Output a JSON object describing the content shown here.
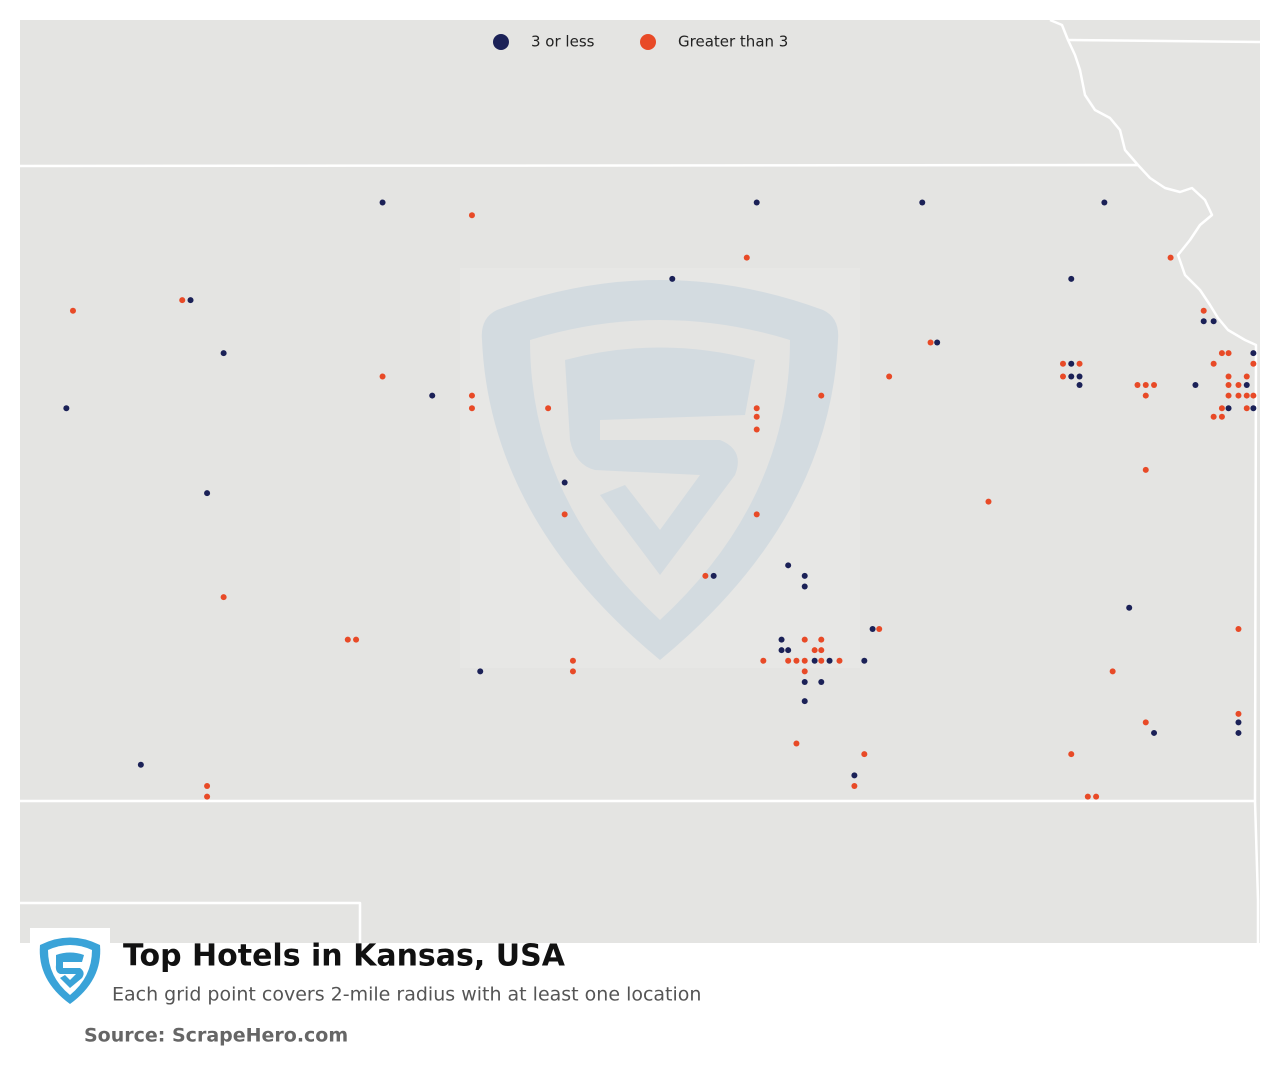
{
  "chart_data": {
    "type": "map",
    "title": "Top Hotels in Kansas, USA",
    "subtitle": "Each grid point covers 2-mile radius with at least one location",
    "source": "Source: ScrapeHero.com",
    "xlim": [
      -102.06,
      -94.57
    ],
    "ylim": [
      36.33,
      40.68
    ],
    "series": [
      {
        "name": "3 or less",
        "color": "#1b2157",
        "points": [
          [
            -99.87,
            39.82
          ],
          [
            -97.61,
            39.82
          ],
          [
            -96.61,
            39.82
          ],
          [
            -95.51,
            39.82
          ],
          [
            -101.03,
            39.36
          ],
          [
            -98.12,
            39.46
          ],
          [
            -100.83,
            39.11
          ],
          [
            -95.71,
            39.46
          ],
          [
            -96.52,
            39.16
          ],
          [
            -101.78,
            38.85
          ],
          [
            -99.57,
            38.91
          ],
          [
            -100.93,
            38.45
          ],
          [
            -98.77,
            38.5
          ],
          [
            -97.87,
            38.06
          ],
          [
            -97.42,
            38.11
          ],
          [
            -97.32,
            38.06
          ],
          [
            -97.32,
            38.01
          ],
          [
            -99.28,
            37.61
          ],
          [
            -101.33,
            37.17
          ],
          [
            -97.46,
            37.76
          ],
          [
            -97.46,
            37.71
          ],
          [
            -97.42,
            37.71
          ],
          [
            -97.26,
            37.66
          ],
          [
            -97.17,
            37.66
          ],
          [
            -96.96,
            37.66
          ],
          [
            -97.32,
            37.56
          ],
          [
            -97.22,
            37.56
          ],
          [
            -97.32,
            37.47
          ],
          [
            -96.91,
            37.81
          ],
          [
            -97.02,
            37.12
          ],
          [
            -95.36,
            37.91
          ],
          [
            -95.21,
            37.32
          ],
          [
            -94.7,
            37.37
          ],
          [
            -94.7,
            37.32
          ],
          [
            -95.71,
            39.06
          ],
          [
            -95.71,
            39.0
          ],
          [
            -95.66,
            39.0
          ],
          [
            -95.66,
            38.96
          ],
          [
            -94.91,
            39.26
          ],
          [
            -94.85,
            39.26
          ],
          [
            -94.61,
            39.11
          ],
          [
            -94.96,
            38.96
          ],
          [
            -94.65,
            38.96
          ],
          [
            -94.76,
            38.85
          ],
          [
            -94.61,
            38.85
          ]
        ]
      },
      {
        "name": "Greater than 3",
        "color": "#e84a27",
        "points": [
          [
            -99.33,
            39.76
          ],
          [
            -97.67,
            39.56
          ],
          [
            -101.74,
            39.31
          ],
          [
            -101.08,
            39.36
          ],
          [
            -99.87,
            39.0
          ],
          [
            -99.33,
            38.91
          ],
          [
            -99.33,
            38.85
          ],
          [
            -98.87,
            38.85
          ],
          [
            -97.61,
            38.85
          ],
          [
            -97.61,
            38.81
          ],
          [
            -97.61,
            38.75
          ],
          [
            -97.22,
            38.91
          ],
          [
            -96.81,
            39.0
          ],
          [
            -96.56,
            39.16
          ],
          [
            -98.77,
            38.35
          ],
          [
            -97.61,
            38.35
          ],
          [
            -97.92,
            38.06
          ],
          [
            -100.83,
            37.96
          ],
          [
            -100.08,
            37.76
          ],
          [
            -100.03,
            37.76
          ],
          [
            -98.72,
            37.66
          ],
          [
            -98.72,
            37.61
          ],
          [
            -97.32,
            37.76
          ],
          [
            -97.22,
            37.76
          ],
          [
            -97.26,
            37.71
          ],
          [
            -97.22,
            37.71
          ],
          [
            -97.57,
            37.66
          ],
          [
            -97.42,
            37.66
          ],
          [
            -97.37,
            37.66
          ],
          [
            -97.32,
            37.66
          ],
          [
            -97.22,
            37.66
          ],
          [
            -97.11,
            37.66
          ],
          [
            -97.32,
            37.61
          ],
          [
            -96.87,
            37.81
          ],
          [
            -97.37,
            37.27
          ],
          [
            -96.96,
            37.22
          ],
          [
            -97.02,
            37.07
          ],
          [
            -100.93,
            37.07
          ],
          [
            -100.93,
            37.02
          ],
          [
            -96.21,
            38.41
          ],
          [
            -95.26,
            38.56
          ],
          [
            -95.46,
            37.61
          ],
          [
            -95.26,
            37.37
          ],
          [
            -95.71,
            37.22
          ],
          [
            -95.61,
            37.02
          ],
          [
            -95.56,
            37.02
          ],
          [
            -94.7,
            37.81
          ],
          [
            -94.7,
            37.41
          ],
          [
            -95.76,
            39.06
          ],
          [
            -95.66,
            39.06
          ],
          [
            -95.76,
            39.0
          ],
          [
            -95.31,
            38.96
          ],
          [
            -95.26,
            38.96
          ],
          [
            -95.21,
            38.96
          ],
          [
            -95.26,
            38.91
          ],
          [
            -95.11,
            39.56
          ],
          [
            -94.91,
            39.31
          ],
          [
            -94.8,
            39.11
          ],
          [
            -94.76,
            39.11
          ],
          [
            -94.85,
            39.06
          ],
          [
            -94.61,
            39.06
          ],
          [
            -94.76,
            39.0
          ],
          [
            -94.76,
            38.96
          ],
          [
            -94.7,
            38.96
          ],
          [
            -94.65,
            39.0
          ],
          [
            -94.76,
            38.91
          ],
          [
            -94.7,
            38.91
          ],
          [
            -94.65,
            38.91
          ],
          [
            -94.61,
            38.91
          ],
          [
            -94.8,
            38.85
          ],
          [
            -94.65,
            38.85
          ],
          [
            -94.85,
            38.81
          ],
          [
            -94.8,
            38.81
          ]
        ]
      }
    ]
  }
}
